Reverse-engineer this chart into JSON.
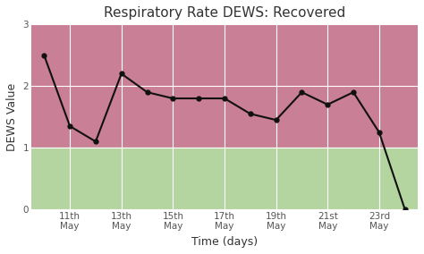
{
  "title": "Respiratory Rate DEWS: Recovered",
  "xlabel": "Time (days)",
  "ylabel": "DEWS Value",
  "ylim": [
    0,
    3
  ],
  "xlim": [
    9.5,
    24.5
  ],
  "tick_labels": [
    "11th\nMay",
    "13th\nMay",
    "15th\nMay",
    "17th\nMay",
    "19th\nMay",
    "21st\nMay",
    "23rd\nMay"
  ],
  "tick_positions": [
    11,
    13,
    15,
    17,
    19,
    21,
    23
  ],
  "x_data": [
    10,
    11,
    12,
    13,
    14,
    15,
    16,
    17,
    18,
    19,
    20,
    21,
    22,
    23,
    24
  ],
  "y_data": [
    2.5,
    1.35,
    1.1,
    2.2,
    1.9,
    1.8,
    1.8,
    1.8,
    1.55,
    1.45,
    1.9,
    1.7,
    1.9,
    1.25,
    0.0
  ],
  "line_color": "#111111",
  "marker_color": "#111111",
  "zone_high_color": "#c97f96",
  "zone_low_color": "#b5d5a0",
  "zone_threshold": 1.0,
  "grid_color": "#ffffff",
  "background_color": "#ffffff",
  "title_fontsize": 11,
  "axis_label_fontsize": 9,
  "tick_fontsize": 7.5
}
